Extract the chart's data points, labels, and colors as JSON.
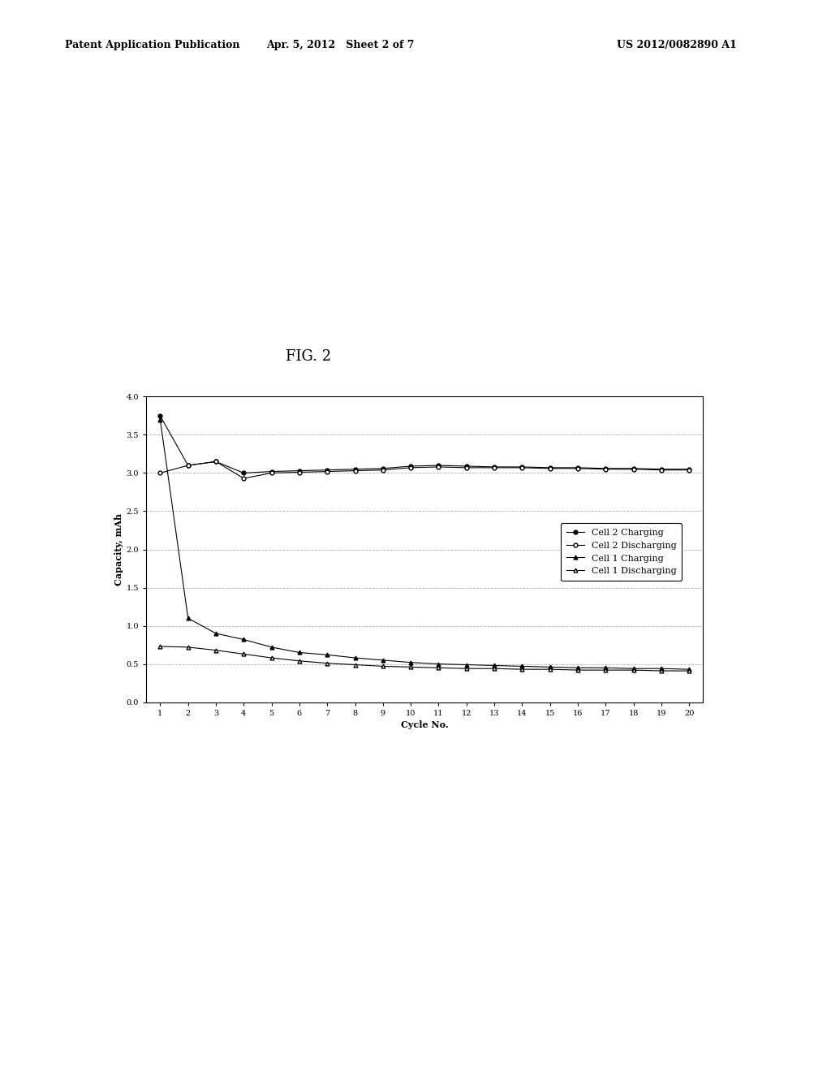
{
  "fig_label": "FIG. 2",
  "patent_header_left": "Patent Application Publication",
  "patent_header_mid": "Apr. 5, 2012   Sheet 2 of 7",
  "patent_header_right": "US 2012/0082890 A1",
  "xlabel": "Cycle No.",
  "ylabel": "Capacity, mAh",
  "xlim_min": 0.5,
  "xlim_max": 20.5,
  "ylim": [
    0.0,
    4.0
  ],
  "yticks": [
    0.0,
    0.5,
    1.0,
    1.5,
    2.0,
    2.5,
    3.0,
    3.5,
    4.0
  ],
  "xticks": [
    1,
    2,
    3,
    4,
    5,
    6,
    7,
    8,
    9,
    10,
    11,
    12,
    13,
    14,
    15,
    16,
    17,
    18,
    19,
    20
  ],
  "cell2_charging_x": [
    1,
    2,
    3,
    4,
    5,
    6,
    7,
    8,
    9,
    10,
    11,
    12,
    13,
    14,
    15,
    16,
    17,
    18,
    19,
    20
  ],
  "cell2_charging_y": [
    3.75,
    3.1,
    3.15,
    3.0,
    3.02,
    3.03,
    3.04,
    3.05,
    3.06,
    3.09,
    3.1,
    3.09,
    3.08,
    3.08,
    3.07,
    3.07,
    3.06,
    3.06,
    3.05,
    3.05
  ],
  "cell2_discharging_x": [
    1,
    2,
    3,
    4,
    5,
    6,
    7,
    8,
    9,
    10,
    11,
    12,
    13,
    14,
    15,
    16,
    17,
    18,
    19,
    20
  ],
  "cell2_discharging_y": [
    3.0,
    3.1,
    3.15,
    2.93,
    3.0,
    3.01,
    3.02,
    3.03,
    3.04,
    3.07,
    3.08,
    3.07,
    3.07,
    3.07,
    3.06,
    3.06,
    3.05,
    3.05,
    3.04,
    3.04
  ],
  "cell1_charging_x": [
    1,
    2,
    3,
    4,
    5,
    6,
    7,
    8,
    9,
    10,
    11,
    12,
    13,
    14,
    15,
    16,
    17,
    18,
    19,
    20
  ],
  "cell1_charging_y": [
    3.7,
    1.1,
    0.9,
    0.82,
    0.72,
    0.65,
    0.62,
    0.58,
    0.55,
    0.52,
    0.5,
    0.49,
    0.48,
    0.47,
    0.46,
    0.45,
    0.45,
    0.44,
    0.44,
    0.43
  ],
  "cell1_discharging_x": [
    1,
    2,
    3,
    4,
    5,
    6,
    7,
    8,
    9,
    10,
    11,
    12,
    13,
    14,
    15,
    16,
    17,
    18,
    19,
    20
  ],
  "cell1_discharging_y": [
    0.73,
    0.72,
    0.68,
    0.63,
    0.58,
    0.54,
    0.51,
    0.49,
    0.47,
    0.46,
    0.45,
    0.44,
    0.44,
    0.43,
    0.43,
    0.42,
    0.42,
    0.42,
    0.41,
    0.41
  ],
  "line_color": "#000000",
  "bg_color": "#ffffff",
  "grid_color": "#aaaaaa",
  "header_fontsize": 9,
  "fig_label_fontsize": 13,
  "axis_label_fontsize": 8,
  "tick_fontsize": 7,
  "legend_fontsize": 8
}
